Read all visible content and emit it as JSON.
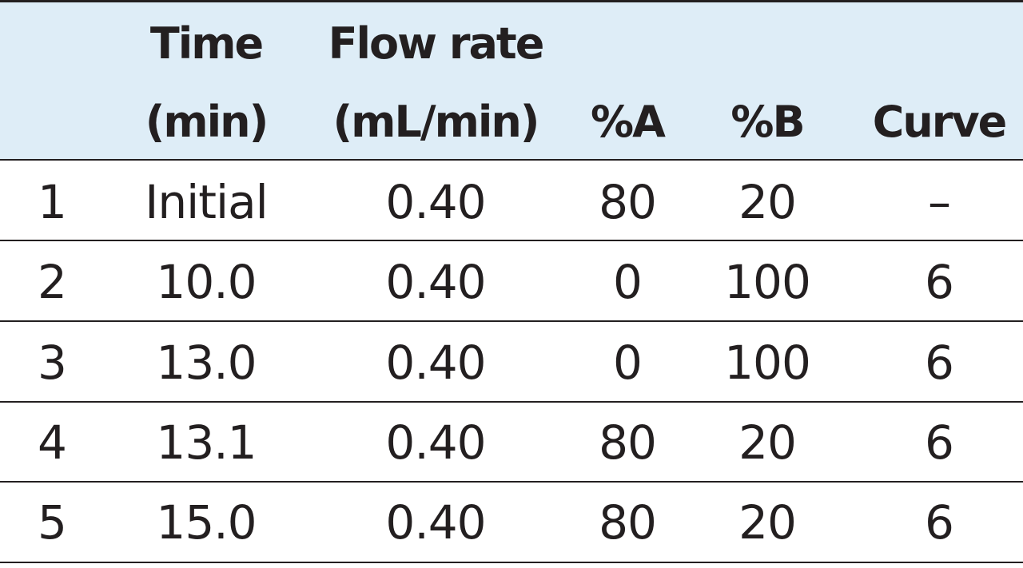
{
  "table": {
    "headers": {
      "time_line1": "Time",
      "time_line2": "(min)",
      "flow_line1": "Flow rate",
      "flow_line2": "(mL/min)",
      "pct_a": "%A",
      "pct_b": "%B",
      "curve": "Curve"
    },
    "rows": [
      {
        "index": "1",
        "time": "Initial",
        "flow": "0.40",
        "a": "80",
        "b": "20",
        "curve": "–"
      },
      {
        "index": "2",
        "time": "10.0",
        "flow": "0.40",
        "a": "0",
        "b": "100",
        "curve": "6"
      },
      {
        "index": "3",
        "time": "13.0",
        "flow": "0.40",
        "a": "0",
        "b": "100",
        "curve": "6"
      },
      {
        "index": "4",
        "time": "13.1",
        "flow": "0.40",
        "a": "80",
        "b": "20",
        "curve": "6"
      },
      {
        "index": "5",
        "time": "15.0",
        "flow": "0.40",
        "a": "80",
        "b": "20",
        "curve": "6"
      }
    ]
  },
  "colors": {
    "header_background": "#deedf7",
    "rule": "#231f20",
    "text": "#231f20"
  }
}
